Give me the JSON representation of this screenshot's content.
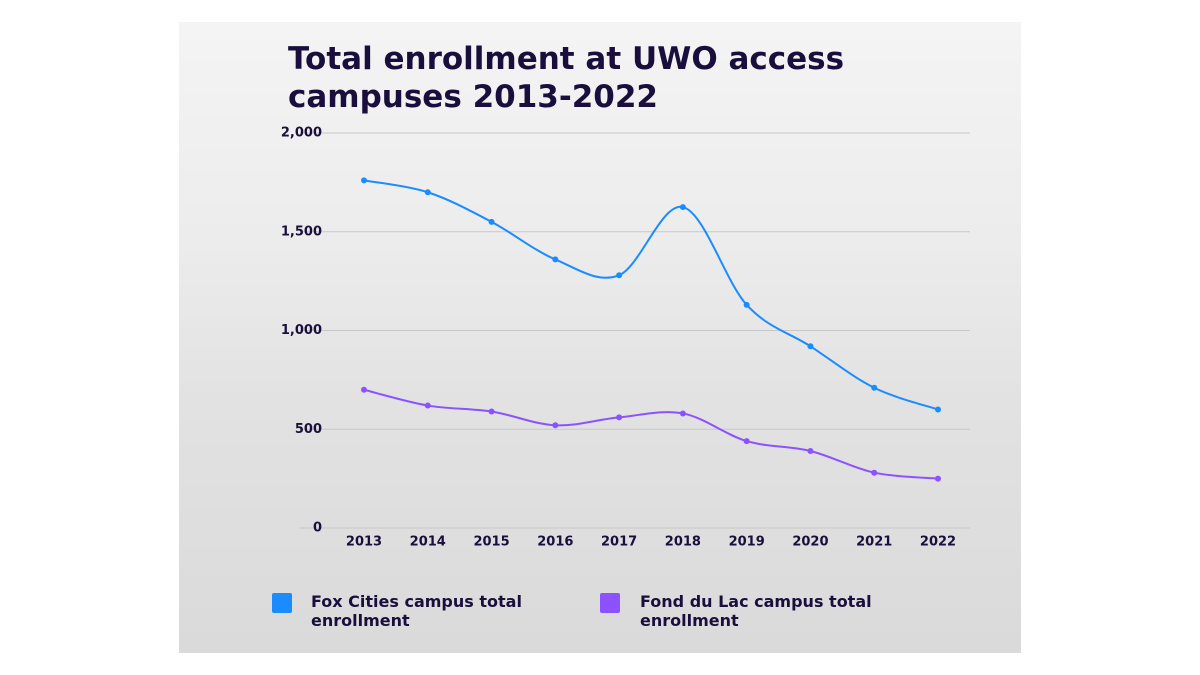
{
  "chart_data": {
    "type": "line",
    "title": "Total enrollment at UWO access campuses 2013-2022",
    "categories": [
      "2013",
      "2014",
      "2015",
      "2016",
      "2017",
      "2018",
      "2019",
      "2020",
      "2021",
      "2022"
    ],
    "series": [
      {
        "name": "Fox Cities campus total enrollment",
        "color": "#1a8cff",
        "values": [
          1760,
          1700,
          1550,
          1360,
          1280,
          1625,
          1130,
          920,
          710,
          600
        ]
      },
      {
        "name": "Fond du Lac campus total enrollment",
        "color": "#8c52ff",
        "values": [
          700,
          620,
          590,
          520,
          560,
          580,
          440,
          390,
          280,
          250
        ]
      }
    ],
    "ylim": [
      0,
      2000
    ],
    "yticks": [
      0,
      500,
      {
        "value": 1000,
        "label": "1,000"
      },
      {
        "value": 1500,
        "label": "1,500"
      },
      {
        "value": 2000,
        "label": "2,000"
      }
    ],
    "grid": true
  }
}
